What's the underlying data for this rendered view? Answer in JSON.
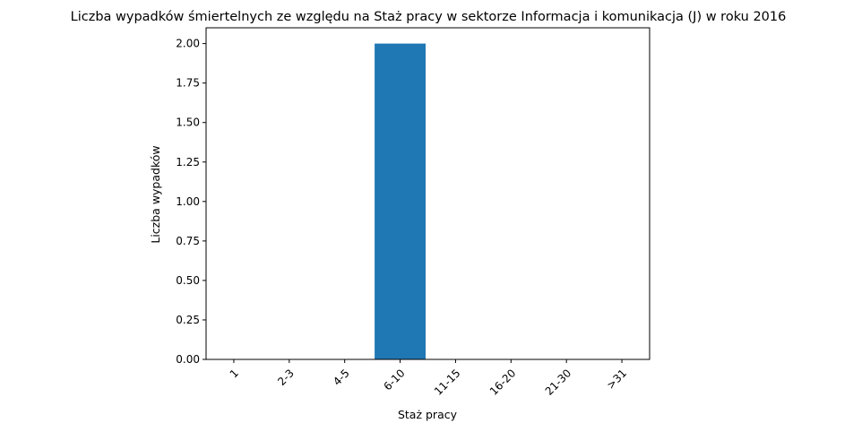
{
  "chart_data": {
    "type": "bar",
    "title": "Liczba wypadków śmiertelnych ze względu na Staż pracy w sektorze Informacja i komunikacja (J)   w roku 2016",
    "xlabel": "Staż pracy",
    "ylabel": "Liczba wypadków",
    "categories": [
      "1",
      "2-3",
      "4-5",
      "6-10",
      "11-15",
      "16-20",
      "21-30",
      ">31"
    ],
    "values": [
      0,
      0,
      0,
      2,
      0,
      0,
      0,
      0
    ],
    "ylim": [
      0,
      2.1
    ],
    "yticks": [
      "0.00",
      "0.25",
      "0.50",
      "0.75",
      "1.00",
      "1.25",
      "1.50",
      "1.75",
      "2.00"
    ],
    "grid": false,
    "bar_color": "#1f77b4"
  }
}
